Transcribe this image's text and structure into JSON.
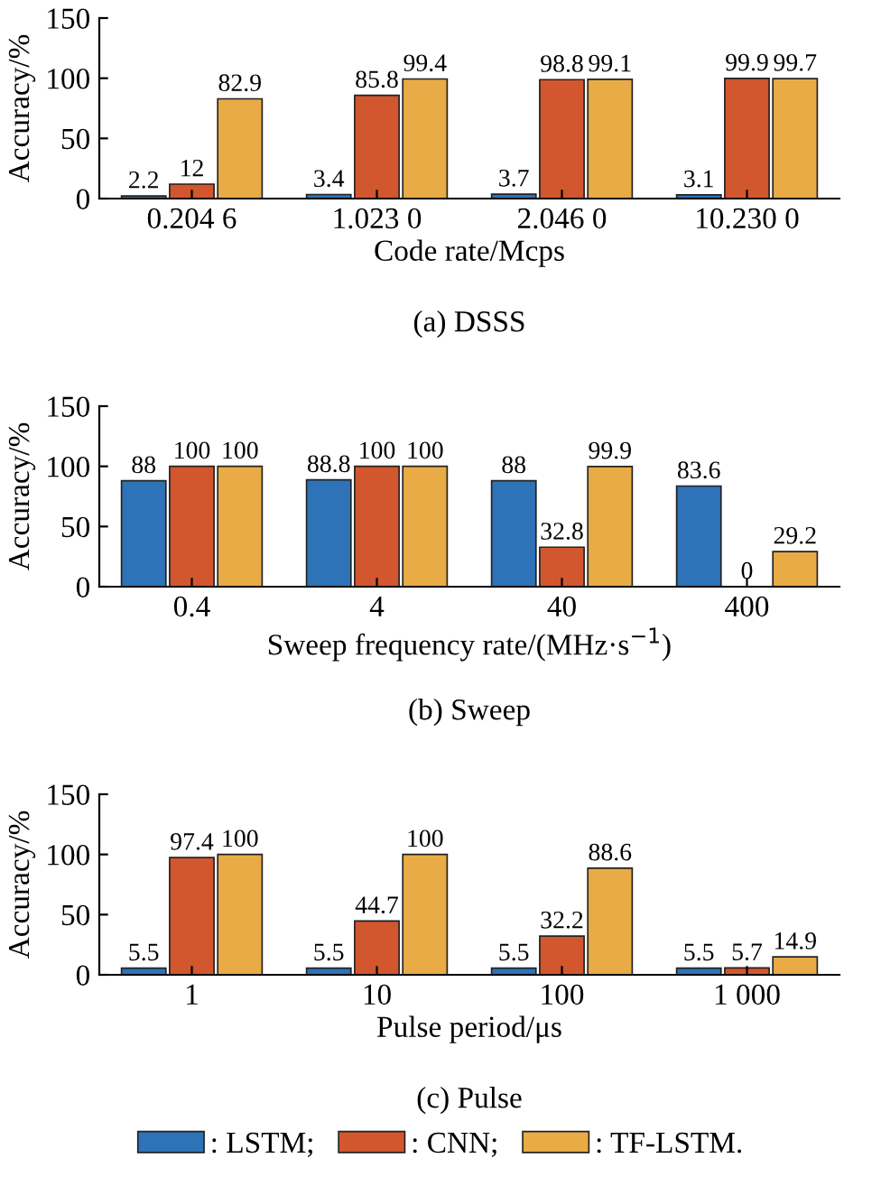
{
  "chart_data": [
    {
      "type": "bar",
      "title": "(a) DSSS",
      "xlabel": "Code rate/Mcps",
      "ylabel": "Accuracy/%",
      "categories": [
        "0.204 6",
        "1.023 0",
        "2.046 0",
        "10.230 0"
      ],
      "ylim": [
        0,
        150
      ],
      "yticks": [
        0,
        50,
        100,
        150
      ],
      "data_labels": true,
      "series": [
        {
          "color": "#2e72b8",
          "values": [
            2.2,
            3.4,
            3.7,
            3.1
          ]
        },
        {
          "color": "#d2562e",
          "values": [
            12,
            85.8,
            98.8,
            99.9
          ]
        },
        {
          "color": "#e8ab45",
          "values": [
            82.9,
            99.4,
            99.1,
            99.7
          ]
        }
      ]
    },
    {
      "type": "bar",
      "title": "(b) Sweep",
      "xlabel": "Sweep frequency rate/(MHz·s$^{−1}$)",
      "ylabel": "Accuracy/%",
      "categories": [
        "0.4",
        "4",
        "40",
        "400"
      ],
      "ylim": [
        0,
        150
      ],
      "yticks": [
        0,
        50,
        100,
        150
      ],
      "data_labels": true,
      "series": [
        {
          "color": "#2e72b8",
          "values": [
            88,
            88.8,
            88,
            83.6
          ]
        },
        {
          "color": "#d2562e",
          "values": [
            100,
            100,
            32.8,
            0
          ]
        },
        {
          "color": "#e8ab45",
          "values": [
            100,
            100,
            99.9,
            29.2
          ]
        }
      ]
    },
    {
      "type": "bar",
      "title": "(c) Pulse",
      "xlabel": "Pulse period/μs",
      "ylabel": "Accuracy/%",
      "categories": [
        "1",
        "10",
        "100",
        "1 000"
      ],
      "ylim": [
        0,
        150
      ],
      "yticks": [
        0,
        50,
        100,
        150
      ],
      "data_labels": true,
      "legend": "bottom",
      "series": [
        {
          "name": ": LSTM;",
          "color": "#2e72b8",
          "values": [
            5.5,
            5.5,
            5.5,
            5.5
          ]
        },
        {
          "name": ": CNN;",
          "color": "#d2562e",
          "values": [
            97.4,
            44.7,
            32.2,
            5.7
          ]
        },
        {
          "name": ": TF-LSTM.",
          "color": "#e8ab45",
          "values": [
            100,
            100,
            88.6,
            14.9
          ]
        }
      ]
    }
  ]
}
